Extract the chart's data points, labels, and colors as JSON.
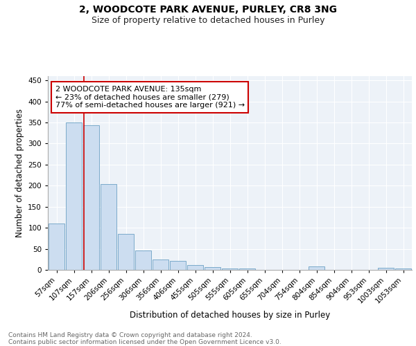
{
  "title1": "2, WOODCOTE PARK AVENUE, PURLEY, CR8 3NG",
  "title2": "Size of property relative to detached houses in Purley",
  "xlabel": "Distribution of detached houses by size in Purley",
  "ylabel": "Number of detached properties",
  "categories": [
    "57sqm",
    "107sqm",
    "157sqm",
    "206sqm",
    "256sqm",
    "306sqm",
    "356sqm",
    "406sqm",
    "455sqm",
    "505sqm",
    "555sqm",
    "605sqm",
    "655sqm",
    "704sqm",
    "754sqm",
    "804sqm",
    "854sqm",
    "904sqm",
    "953sqm",
    "1003sqm",
    "1053sqm"
  ],
  "values": [
    110,
    350,
    343,
    204,
    85,
    46,
    25,
    22,
    11,
    6,
    3,
    3,
    0,
    0,
    0,
    8,
    0,
    0,
    0,
    5,
    3
  ],
  "bar_color": "#ccddf0",
  "bar_edge_color": "#7aaaca",
  "bar_edge_width": 0.7,
  "vline_color": "#cc0000",
  "annotation_text": "2 WOODCOTE PARK AVENUE: 135sqm\n← 23% of detached houses are smaller (279)\n77% of semi-detached houses are larger (921) →",
  "annotation_box_color": "#ffffff",
  "annotation_box_edge": "#cc0000",
  "ylim": [
    0,
    460
  ],
  "yticks": [
    0,
    50,
    100,
    150,
    200,
    250,
    300,
    350,
    400,
    450
  ],
  "background_color": "#edf2f8",
  "grid_color": "#ffffff",
  "footer": "Contains HM Land Registry data © Crown copyright and database right 2024.\nContains public sector information licensed under the Open Government Licence v3.0.",
  "title1_fontsize": 10,
  "title2_fontsize": 9,
  "axis_label_fontsize": 8.5,
  "tick_fontsize": 7.5,
  "annotation_fontsize": 8,
  "footer_fontsize": 6.5
}
